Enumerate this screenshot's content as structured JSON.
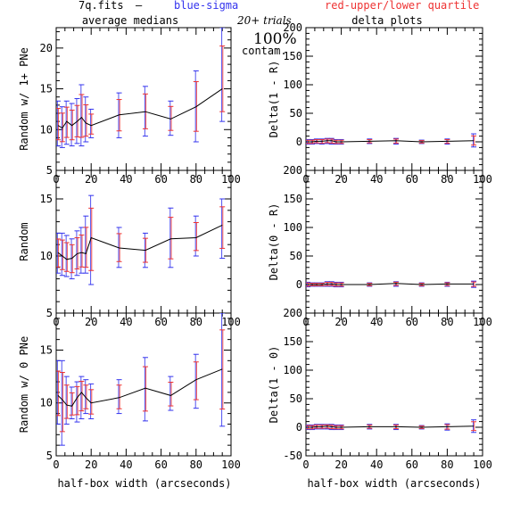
{
  "header": {
    "file": "7q.fits",
    "dash": "–",
    "blue_label": "blue-sigma",
    "red_label": "red-upper/lower quartile",
    "trials": "20+ trials",
    "percent": "100%",
    "contam": "contam."
  },
  "colors": {
    "blue": "#3333ee",
    "red": "#ee3333",
    "line": "#000000",
    "errbar_mix": "#aa44cc"
  },
  "column_titles": {
    "left": "average medians",
    "right": "delta plots"
  },
  "x_axis_label": "half-box width (arcseconds)",
  "chart_data": [
    {
      "id": "left-top",
      "type": "line",
      "column": "left",
      "row": 0,
      "ylabel": "Random w/ 1+ PNe",
      "xlim": [
        0,
        100
      ],
      "ylim": [
        5,
        22.5
      ],
      "xticks": [
        0,
        20,
        40,
        60,
        80,
        100
      ],
      "yticks": [
        5,
        10,
        15,
        20
      ],
      "x": [
        1,
        3.5,
        6,
        9,
        12,
        14.5,
        17,
        20,
        36,
        51,
        65.5,
        80,
        95
      ],
      "y": [
        10.5,
        10.2,
        11,
        10.5,
        11,
        11.5,
        10.8,
        10.5,
        11.8,
        12.2,
        11.3,
        12.8,
        15
      ],
      "err_lo": [
        8,
        7.8,
        8.2,
        8,
        8.3,
        8,
        8.5,
        9,
        9,
        9.2,
        9.3,
        8.5,
        11
      ],
      "err_hi": [
        13.5,
        12.8,
        13.5,
        13.2,
        13.8,
        15.5,
        14,
        12.5,
        14.5,
        15.3,
        13.5,
        17.2,
        22.5
      ]
    },
    {
      "id": "left-middle",
      "type": "line",
      "column": "left",
      "row": 1,
      "ylabel": "Random",
      "xlim": [
        0,
        100
      ],
      "ylim": [
        5,
        17.5
      ],
      "xticks": [
        0,
        20,
        40,
        60,
        80,
        100
      ],
      "yticks": [
        5,
        10,
        15
      ],
      "x": [
        1,
        3.5,
        6,
        9,
        12,
        14.5,
        17,
        20,
        36,
        51,
        65.5,
        80,
        95
      ],
      "y": [
        10.3,
        10,
        9.7,
        9.8,
        10.2,
        10.3,
        10.2,
        11.6,
        10.7,
        10.5,
        11.5,
        11.6,
        12.7
      ],
      "err_lo": [
        8.5,
        8.3,
        8.2,
        8,
        8.3,
        8.5,
        8.5,
        7.5,
        9,
        9,
        9,
        10,
        9.8
      ],
      "err_hi": [
        12,
        12,
        11.8,
        11.5,
        12.2,
        12.5,
        13.5,
        15.3,
        12.5,
        12,
        14.2,
        13.5,
        15
      ]
    },
    {
      "id": "left-bottom",
      "type": "line",
      "column": "left",
      "row": 2,
      "ylabel": "Random w/ 0 PNe",
      "xlim": [
        0,
        100
      ],
      "ylim": [
        5,
        18.5
      ],
      "xticks": [
        0,
        20,
        40,
        60,
        80,
        100
      ],
      "yticks": [
        5,
        10,
        15
      ],
      "x": [
        1,
        3.5,
        6,
        9,
        12,
        14.5,
        17,
        20,
        36,
        51,
        65.5,
        80,
        95
      ],
      "y": [
        10.7,
        10.3,
        9.8,
        9.7,
        10.5,
        11,
        10.5,
        10,
        10.5,
        11.4,
        10.7,
        12.2,
        13.2
      ],
      "err_lo": [
        8,
        6,
        8,
        8.5,
        8.2,
        8.5,
        9,
        8.5,
        9,
        8.3,
        9.3,
        9.5,
        7.8
      ],
      "err_hi": [
        14,
        14,
        12.5,
        11.5,
        12,
        12.5,
        12.2,
        11.8,
        12.2,
        14.3,
        12.5,
        14.6,
        18.5
      ]
    },
    {
      "id": "right-top",
      "type": "line",
      "column": "right",
      "row": 0,
      "ylabel": "Delta(1 - R)",
      "xlim": [
        0,
        100
      ],
      "ylim": [
        -50,
        200
      ],
      "xticks": [
        0,
        20,
        40,
        60,
        80,
        100
      ],
      "yticks": [
        0,
        50,
        100,
        150,
        200
      ],
      "x": [
        1,
        3.5,
        6,
        9,
        12,
        14.5,
        17,
        20,
        36,
        51,
        65.5,
        80,
        95
      ],
      "y": [
        0,
        0,
        1,
        1,
        2,
        2,
        0,
        0,
        1,
        2,
        0,
        1,
        2
      ],
      "err_lo": [
        -4,
        -4,
        -3,
        -4,
        -3,
        -4,
        -4,
        -4,
        -3,
        -4,
        -3,
        -4,
        -9
      ],
      "err_hi": [
        4,
        4,
        5,
        5,
        6,
        6,
        4,
        4,
        5,
        6,
        3,
        5,
        14
      ]
    },
    {
      "id": "right-middle",
      "type": "line",
      "column": "right",
      "row": 1,
      "ylabel": "Delta(0 - R)",
      "xlim": [
        0,
        100
      ],
      "ylim": [
        -50,
        200
      ],
      "xticks": [
        0,
        20,
        40,
        60,
        80,
        100
      ],
      "yticks": [
        0,
        50,
        100,
        150,
        200
      ],
      "x": [
        1,
        3.5,
        6,
        9,
        12,
        14.5,
        17,
        20,
        36,
        51,
        65.5,
        80,
        95
      ],
      "y": [
        0,
        0,
        0,
        0,
        1,
        1,
        0,
        0,
        0,
        2,
        0,
        1,
        1
      ],
      "err_lo": [
        -4,
        -3,
        -3,
        -3,
        -3,
        -3,
        -4,
        -4,
        -3,
        -3,
        -3,
        -3,
        -5
      ],
      "err_hi": [
        4,
        3,
        3,
        3,
        5,
        5,
        4,
        4,
        3,
        5,
        3,
        4,
        6
      ]
    },
    {
      "id": "right-bottom",
      "type": "line",
      "column": "right",
      "row": 2,
      "ylabel": "Delta(1 - 0)",
      "xlim": [
        0,
        100
      ],
      "ylim": [
        -50,
        200
      ],
      "xticks": [
        0,
        20,
        40,
        60,
        80,
        100
      ],
      "yticks": [
        -50,
        0,
        50,
        100,
        150,
        200
      ],
      "x": [
        1,
        3.5,
        6,
        9,
        12,
        14.5,
        17,
        20,
        36,
        51,
        65.5,
        80,
        95
      ],
      "y": [
        0,
        0,
        1,
        1,
        2,
        1,
        0,
        0,
        1,
        1,
        0,
        1,
        2
      ],
      "err_lo": [
        -4,
        -4,
        -3,
        -3,
        -3,
        -4,
        -4,
        -4,
        -3,
        -4,
        -3,
        -5,
        -9
      ],
      "err_hi": [
        4,
        4,
        5,
        5,
        5,
        5,
        4,
        4,
        5,
        5,
        3,
        6,
        13
      ]
    }
  ]
}
